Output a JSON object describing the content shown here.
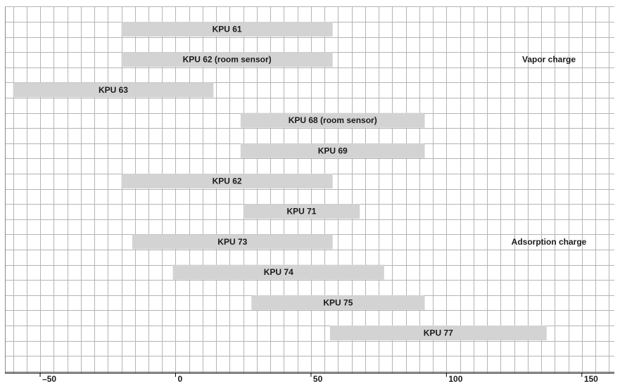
{
  "chart_data": {
    "type": "bar",
    "title": "",
    "xlabel": "",
    "ylabel": "",
    "xlim": [
      -63,
      162
    ],
    "x_ticks": [
      -50,
      0,
      50,
      100,
      150
    ],
    "x_tick_labels": [
      "–50",
      "0",
      "50",
      "100",
      "150"
    ],
    "grid": true,
    "bar_color": "#d3d3d3",
    "grid_color": "#b4b4b4",
    "bars": [
      {
        "label": "KPU 61",
        "start": -20,
        "end": 58
      },
      {
        "label": "KPU 62 (room sensor)",
        "start": -20,
        "end": 58
      },
      {
        "label": "KPU 63",
        "start": -60,
        "end": 14
      },
      {
        "label": "KPU 68 (room sensor)",
        "start": 24,
        "end": 92
      },
      {
        "label": "KPU 69",
        "start": 24,
        "end": 92
      },
      {
        "label": "KPU 62",
        "start": -20,
        "end": 58
      },
      {
        "label": "KPU 71",
        "start": 25,
        "end": 68
      },
      {
        "label": "KPU 73",
        "start": -16,
        "end": 58
      },
      {
        "label": "KPU 74",
        "start": -1,
        "end": 77
      },
      {
        "label": "KPU 75",
        "start": 28,
        "end": 92
      },
      {
        "label": "KPU 77",
        "start": 57,
        "end": 137
      }
    ],
    "group_labels": [
      {
        "text": "Vapor charge",
        "row": 1
      },
      {
        "text": "Adsorption charge",
        "row": 7
      }
    ]
  }
}
